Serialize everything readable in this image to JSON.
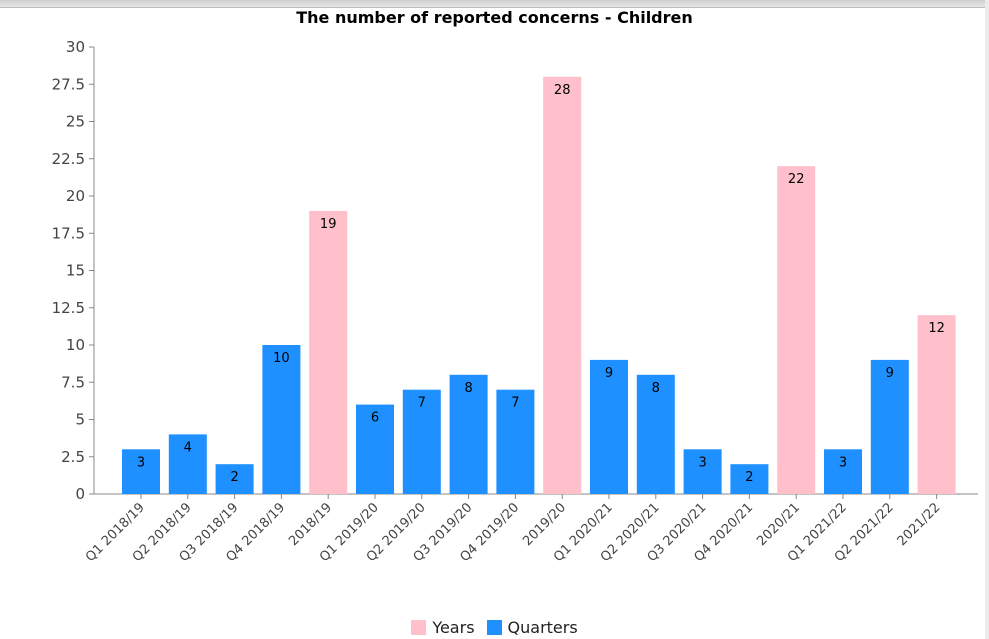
{
  "chart_data": {
    "type": "bar",
    "title": "The number of reported concerns - Children",
    "xlabel": "",
    "ylabel": "",
    "ylim": [
      0,
      30
    ],
    "yticks": [
      "0",
      "2.5",
      "5",
      "7.5",
      "10",
      "12.5",
      "15",
      "17.5",
      "20",
      "22.5",
      "25",
      "27.5",
      "30"
    ],
    "grid": false,
    "legend_position": "bottom",
    "categories": [
      "Q1 2018/19",
      "Q2 2018/19",
      "Q3 2018/19",
      "Q4 2018/19",
      "2018/19",
      "Q1 2019/20",
      "Q2 2019/20",
      "Q3 2019/20",
      "Q4 2019/20",
      "2019/20",
      "Q1 2020/21",
      "Q2 2020/21",
      "Q3 2020/21",
      "Q4 2020/21",
      "2020/21",
      "Q1 2021/22",
      "Q2 2021/22",
      "2021/22"
    ],
    "values": [
      3,
      4,
      2,
      10,
      19,
      6,
      7,
      8,
      7,
      28,
      9,
      8,
      3,
      2,
      22,
      3,
      9,
      12
    ],
    "series_of_bar": [
      "Quarters",
      "Quarters",
      "Quarters",
      "Quarters",
      "Years",
      "Quarters",
      "Quarters",
      "Quarters",
      "Quarters",
      "Years",
      "Quarters",
      "Quarters",
      "Quarters",
      "Quarters",
      "Years",
      "Quarters",
      "Quarters",
      "Years"
    ],
    "series": [
      {
        "name": "Years",
        "color": "#ffc0cb"
      },
      {
        "name": "Quarters",
        "color": "#1e90ff"
      }
    ]
  }
}
